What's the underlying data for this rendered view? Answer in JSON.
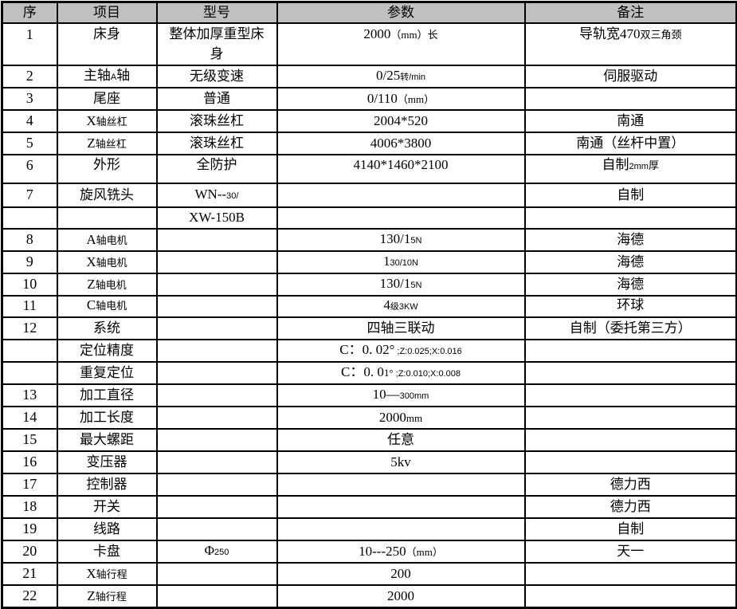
{
  "header": {
    "columns": [
      "序",
      "项目",
      "型号",
      "参数",
      "备注"
    ]
  },
  "rows": [
    {
      "no": "1",
      "item": "床身",
      "model": [
        {
          "t": "整体加厚重型床",
          "sz": "n"
        },
        {
          "br": true
        },
        {
          "t": "身",
          "sz": "n"
        }
      ],
      "param": [
        {
          "t": "2000",
          "sz": "n"
        },
        {
          "t": "（mm）长",
          "sz": "m"
        }
      ],
      "note": [
        {
          "t": "导轨宽470",
          "sz": "n"
        },
        {
          "t": "双三角颈",
          "sz": "m"
        }
      ]
    },
    {
      "no": "2",
      "item": [
        {
          "t": "主轴",
          "sz": "n"
        },
        {
          "t": "A",
          "sz": "s"
        },
        {
          "t": "轴",
          "sz": "n"
        }
      ],
      "model": "无级变速",
      "param": [
        {
          "t": "0/25",
          "sz": "n"
        },
        {
          "t": "转/min",
          "sz": "s"
        }
      ],
      "note": "伺服驱动"
    },
    {
      "no": "3",
      "item": "尾座",
      "model": "普通",
      "param": [
        {
          "t": "0/110",
          "sz": "n"
        },
        {
          "t": "（mm）",
          "sz": "m"
        }
      ],
      "note": ""
    },
    {
      "no": "4",
      "item": [
        {
          "t": "X",
          "sz": "n"
        },
        {
          "t": "轴丝杠",
          "sz": "m"
        }
      ],
      "model": "滚珠丝杠",
      "param": "2004*520",
      "note": "南通"
    },
    {
      "no": "5",
      "item": [
        {
          "t": "Z",
          "sz": "n"
        },
        {
          "t": "轴丝杠",
          "sz": "m"
        }
      ],
      "model": "滚珠丝杠",
      "param": "4006*3800",
      "note": "南通（丝杆中置）"
    },
    {
      "no": "6",
      "item": "外形",
      "model": "全防护",
      "param": "4140*1460*2100",
      "note": [
        {
          "t": "自制",
          "sz": "n"
        },
        {
          "t": "2mm",
          "sz": "s"
        },
        {
          "t": "厚",
          "sz": "m"
        }
      ]
    },
    {
      "no": "7",
      "item": "旋风铣头",
      "model": [
        {
          "t": "WN--",
          "sz": "n"
        },
        {
          "t": "30/",
          "sz": "s"
        }
      ],
      "param": "",
      "note": "自制"
    },
    {
      "no": "",
      "item": "",
      "model": "XW-150B",
      "param": "",
      "note": ""
    },
    {
      "no": "8",
      "item": [
        {
          "t": "A",
          "sz": "n"
        },
        {
          "t": "轴电机",
          "sz": "m"
        }
      ],
      "model": "",
      "param": [
        {
          "t": "130/1",
          "sz": "n"
        },
        {
          "t": "5N",
          "sz": "s"
        }
      ],
      "note": "海德"
    },
    {
      "no": "9",
      "item": [
        {
          "t": "X",
          "sz": "n"
        },
        {
          "t": "轴电机",
          "sz": "m"
        }
      ],
      "model": "",
      "param": [
        {
          "t": "1",
          "sz": "n"
        },
        {
          "t": "30/10N",
          "sz": "s"
        }
      ],
      "note": "海德"
    },
    {
      "no": "10",
      "item": [
        {
          "t": "Z",
          "sz": "n"
        },
        {
          "t": "轴电机",
          "sz": "m"
        }
      ],
      "model": "",
      "param": [
        {
          "t": "130/1",
          "sz": "n"
        },
        {
          "t": "5N",
          "sz": "s"
        }
      ],
      "note": "海德"
    },
    {
      "no": "11",
      "item": [
        {
          "t": "C",
          "sz": "n"
        },
        {
          "t": "轴电机",
          "sz": "m"
        }
      ],
      "model": "",
      "param": [
        {
          "t": "4",
          "sz": "n"
        },
        {
          "t": "级3KW",
          "sz": "s"
        }
      ],
      "note": "环球"
    },
    {
      "no": "12",
      "item": "系统",
      "model": "",
      "param": "四轴三联动",
      "note": "自制（委托第三方）"
    },
    {
      "no": "",
      "item": "定位精度",
      "model": "",
      "param": [
        {
          "t": "C：0. 02°",
          "sz": "n"
        },
        {
          "t": " ;Z:0.025;X:0.016",
          "sz": "s"
        }
      ],
      "note": ""
    },
    {
      "no": "",
      "item": "重复定位",
      "model": "",
      "param": [
        {
          "t": "C：0. 0",
          "sz": "n"
        },
        {
          "t": "1°",
          "sz": "m"
        },
        {
          "t": " ;Z:0.010;X:0.008",
          "sz": "s"
        }
      ],
      "note": ""
    },
    {
      "no": "13",
      "item": "加工直径",
      "model": "",
      "param": [
        {
          "t": "10—",
          "sz": "n"
        },
        {
          "t": "300mm",
          "sz": "s"
        }
      ],
      "note": ""
    },
    {
      "no": "14",
      "item": "加工长度",
      "model": "",
      "param": [
        {
          "t": "2000",
          "sz": "n"
        },
        {
          "t": "mm",
          "sz": "m"
        }
      ],
      "note": ""
    },
    {
      "no": "15",
      "item": "最大螺距",
      "model": "",
      "param": "任意",
      "note": ""
    },
    {
      "no": "16",
      "item": "变压器",
      "model": "",
      "param": "5kv",
      "note": ""
    },
    {
      "no": "17",
      "item": "控制器",
      "model": "",
      "param": "",
      "note": "德力西"
    },
    {
      "no": "18",
      "item": "开关",
      "model": "",
      "param": "",
      "note": "德力西"
    },
    {
      "no": "19",
      "item": "线路",
      "model": "",
      "param": "",
      "note": "自制"
    },
    {
      "no": "20",
      "item": "卡盘",
      "model": [
        {
          "t": "Φ",
          "sz": "n"
        },
        {
          "t": "250",
          "sz": "s"
        }
      ],
      "param": [
        {
          "t": "10---250",
          "sz": "n"
        },
        {
          "t": "（mm）",
          "sz": "m"
        }
      ],
      "note": "天一"
    },
    {
      "no": "21",
      "item": [
        {
          "t": "X",
          "sz": "n"
        },
        {
          "t": "轴行程",
          "sz": "m"
        }
      ],
      "model": "",
      "param": "200",
      "note": ""
    },
    {
      "no": "22",
      "item": [
        {
          "t": "Z",
          "sz": "n"
        },
        {
          "t": "轴行程",
          "sz": "m"
        }
      ],
      "model": "",
      "param": "2000",
      "note": ""
    }
  ],
  "colors": {
    "header_bg": "#c0c0c0",
    "border": "#000000",
    "text": "#000000",
    "background": "#ffffff"
  }
}
